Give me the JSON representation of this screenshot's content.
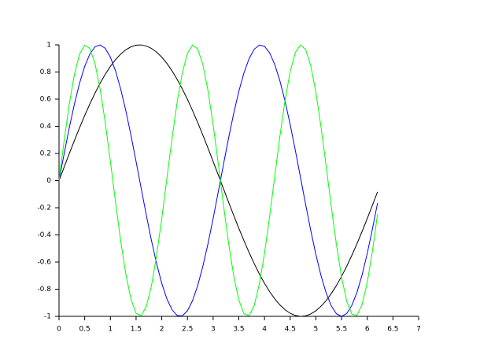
{
  "chart_data": {
    "type": "line",
    "x": [
      0,
      0.1,
      0.2,
      0.3,
      0.4,
      0.5,
      0.6,
      0.7,
      0.8,
      0.9,
      1,
      1.1,
      1.2,
      1.3,
      1.4,
      1.5,
      1.6,
      1.7,
      1.8,
      1.9,
      2,
      2.1,
      2.2,
      2.3,
      2.4,
      2.5,
      2.6,
      2.7,
      2.8,
      2.9,
      3,
      3.1,
      3.2,
      3.3,
      3.4,
      3.5,
      3.6,
      3.7,
      3.8,
      3.9,
      4,
      4.1,
      4.2,
      4.3,
      4.4,
      4.5,
      4.6,
      4.7,
      4.8,
      4.9,
      5,
      5.1,
      5.2,
      5.3,
      5.4,
      5.5,
      5.6,
      5.7,
      5.8,
      5.9,
      6,
      6.1,
      6.2
    ],
    "series": [
      {
        "color": "#000000",
        "values": [
          0,
          0.0998,
          0.1987,
          0.2955,
          0.3894,
          0.4794,
          0.5646,
          0.6442,
          0.7174,
          0.7833,
          0.8415,
          0.8912,
          0.932,
          0.9636,
          0.9854,
          0.9975,
          0.9996,
          0.9917,
          0.9738,
          0.9463,
          0.9093,
          0.8632,
          0.8085,
          0.7457,
          0.6755,
          0.5985,
          0.5155,
          0.4274,
          0.335,
          0.2392,
          0.1411,
          0.0416,
          -0.0584,
          -0.1577,
          -0.2555,
          -0.3508,
          -0.4425,
          -0.5298,
          -0.6119,
          -0.6878,
          -0.7568,
          -0.8183,
          -0.8716,
          -0.9162,
          -0.9516,
          -0.9775,
          -0.9937,
          -0.9999,
          -0.9962,
          -0.9825,
          -0.9589,
          -0.9258,
          -0.8835,
          -0.8323,
          -0.7728,
          -0.7055,
          -0.6313,
          -0.5507,
          -0.4646,
          -0.3739,
          -0.2794,
          -0.1822,
          -0.0831
        ]
      },
      {
        "color": "#0000ff",
        "values": [
          0,
          0.1987,
          0.3894,
          0.5646,
          0.7174,
          0.8415,
          0.932,
          0.9854,
          0.9996,
          0.9738,
          0.9093,
          0.8085,
          0.6755,
          0.5155,
          0.335,
          0.1411,
          -0.0584,
          -0.2555,
          -0.4425,
          -0.6119,
          -0.7568,
          -0.8716,
          -0.9516,
          -0.9937,
          -0.9962,
          -0.9589,
          -0.8835,
          -0.7728,
          -0.6313,
          -0.4646,
          -0.2794,
          -0.0831,
          0.1165,
          0.3115,
          0.4941,
          0.657,
          0.7937,
          0.8987,
          0.9679,
          0.9985,
          0.9894,
          0.9407,
          0.8546,
          0.7344,
          0.5849,
          0.4121,
          0.2229,
          0.0248,
          -0.1743,
          -0.3665,
          -0.544,
          -0.6999,
          -0.8278,
          -0.9228,
          -0.9812,
          -1,
          -0.9792,
          -0.9193,
          -0.8228,
          -0.6935,
          -0.5366,
          -0.3582,
          -0.1656
        ]
      },
      {
        "color": "#00ff00",
        "values": [
          0,
          0.2955,
          0.5646,
          0.7833,
          0.932,
          0.9975,
          0.9738,
          0.8632,
          0.6755,
          0.4274,
          0.1411,
          -0.1577,
          -0.4425,
          -0.6878,
          -0.8716,
          -0.9775,
          -0.9962,
          -0.9258,
          -0.7728,
          -0.5507,
          -0.2794,
          0.0168,
          0.3115,
          0.5784,
          0.7937,
          0.938,
          0.9985,
          0.9699,
          0.8546,
          0.663,
          0.4121,
          0.1245,
          -0.1743,
          -0.4575,
          -0.6999,
          -0.8797,
          -0.9812,
          -0.9946,
          -0.9193,
          -0.7617,
          -0.5366,
          -0.2632,
          0.0336,
          0.3275,
          0.5921,
          0.8038,
          0.9437,
          0.9993,
          0.9661,
          0.8471,
          0.6503,
          0.3959,
          0.1078,
          -0.1909,
          -0.4717,
          -0.7118,
          -0.8874,
          -0.984,
          -0.9926,
          -0.9127,
          -0.751,
          -0.5224,
          -0.247
        ]
      }
    ],
    "xlim": [
      0,
      7
    ],
    "xticks": [
      0,
      0.5,
      1,
      1.5,
      2,
      2.5,
      3,
      3.5,
      4,
      4.5,
      5,
      5.5,
      6,
      6.5,
      7
    ],
    "ylim": [
      -1,
      1
    ],
    "yticks": [
      -1,
      -0.8,
      -0.6,
      -0.4,
      -0.2,
      0,
      0.2,
      0.4,
      0.6,
      0.8,
      1
    ]
  }
}
